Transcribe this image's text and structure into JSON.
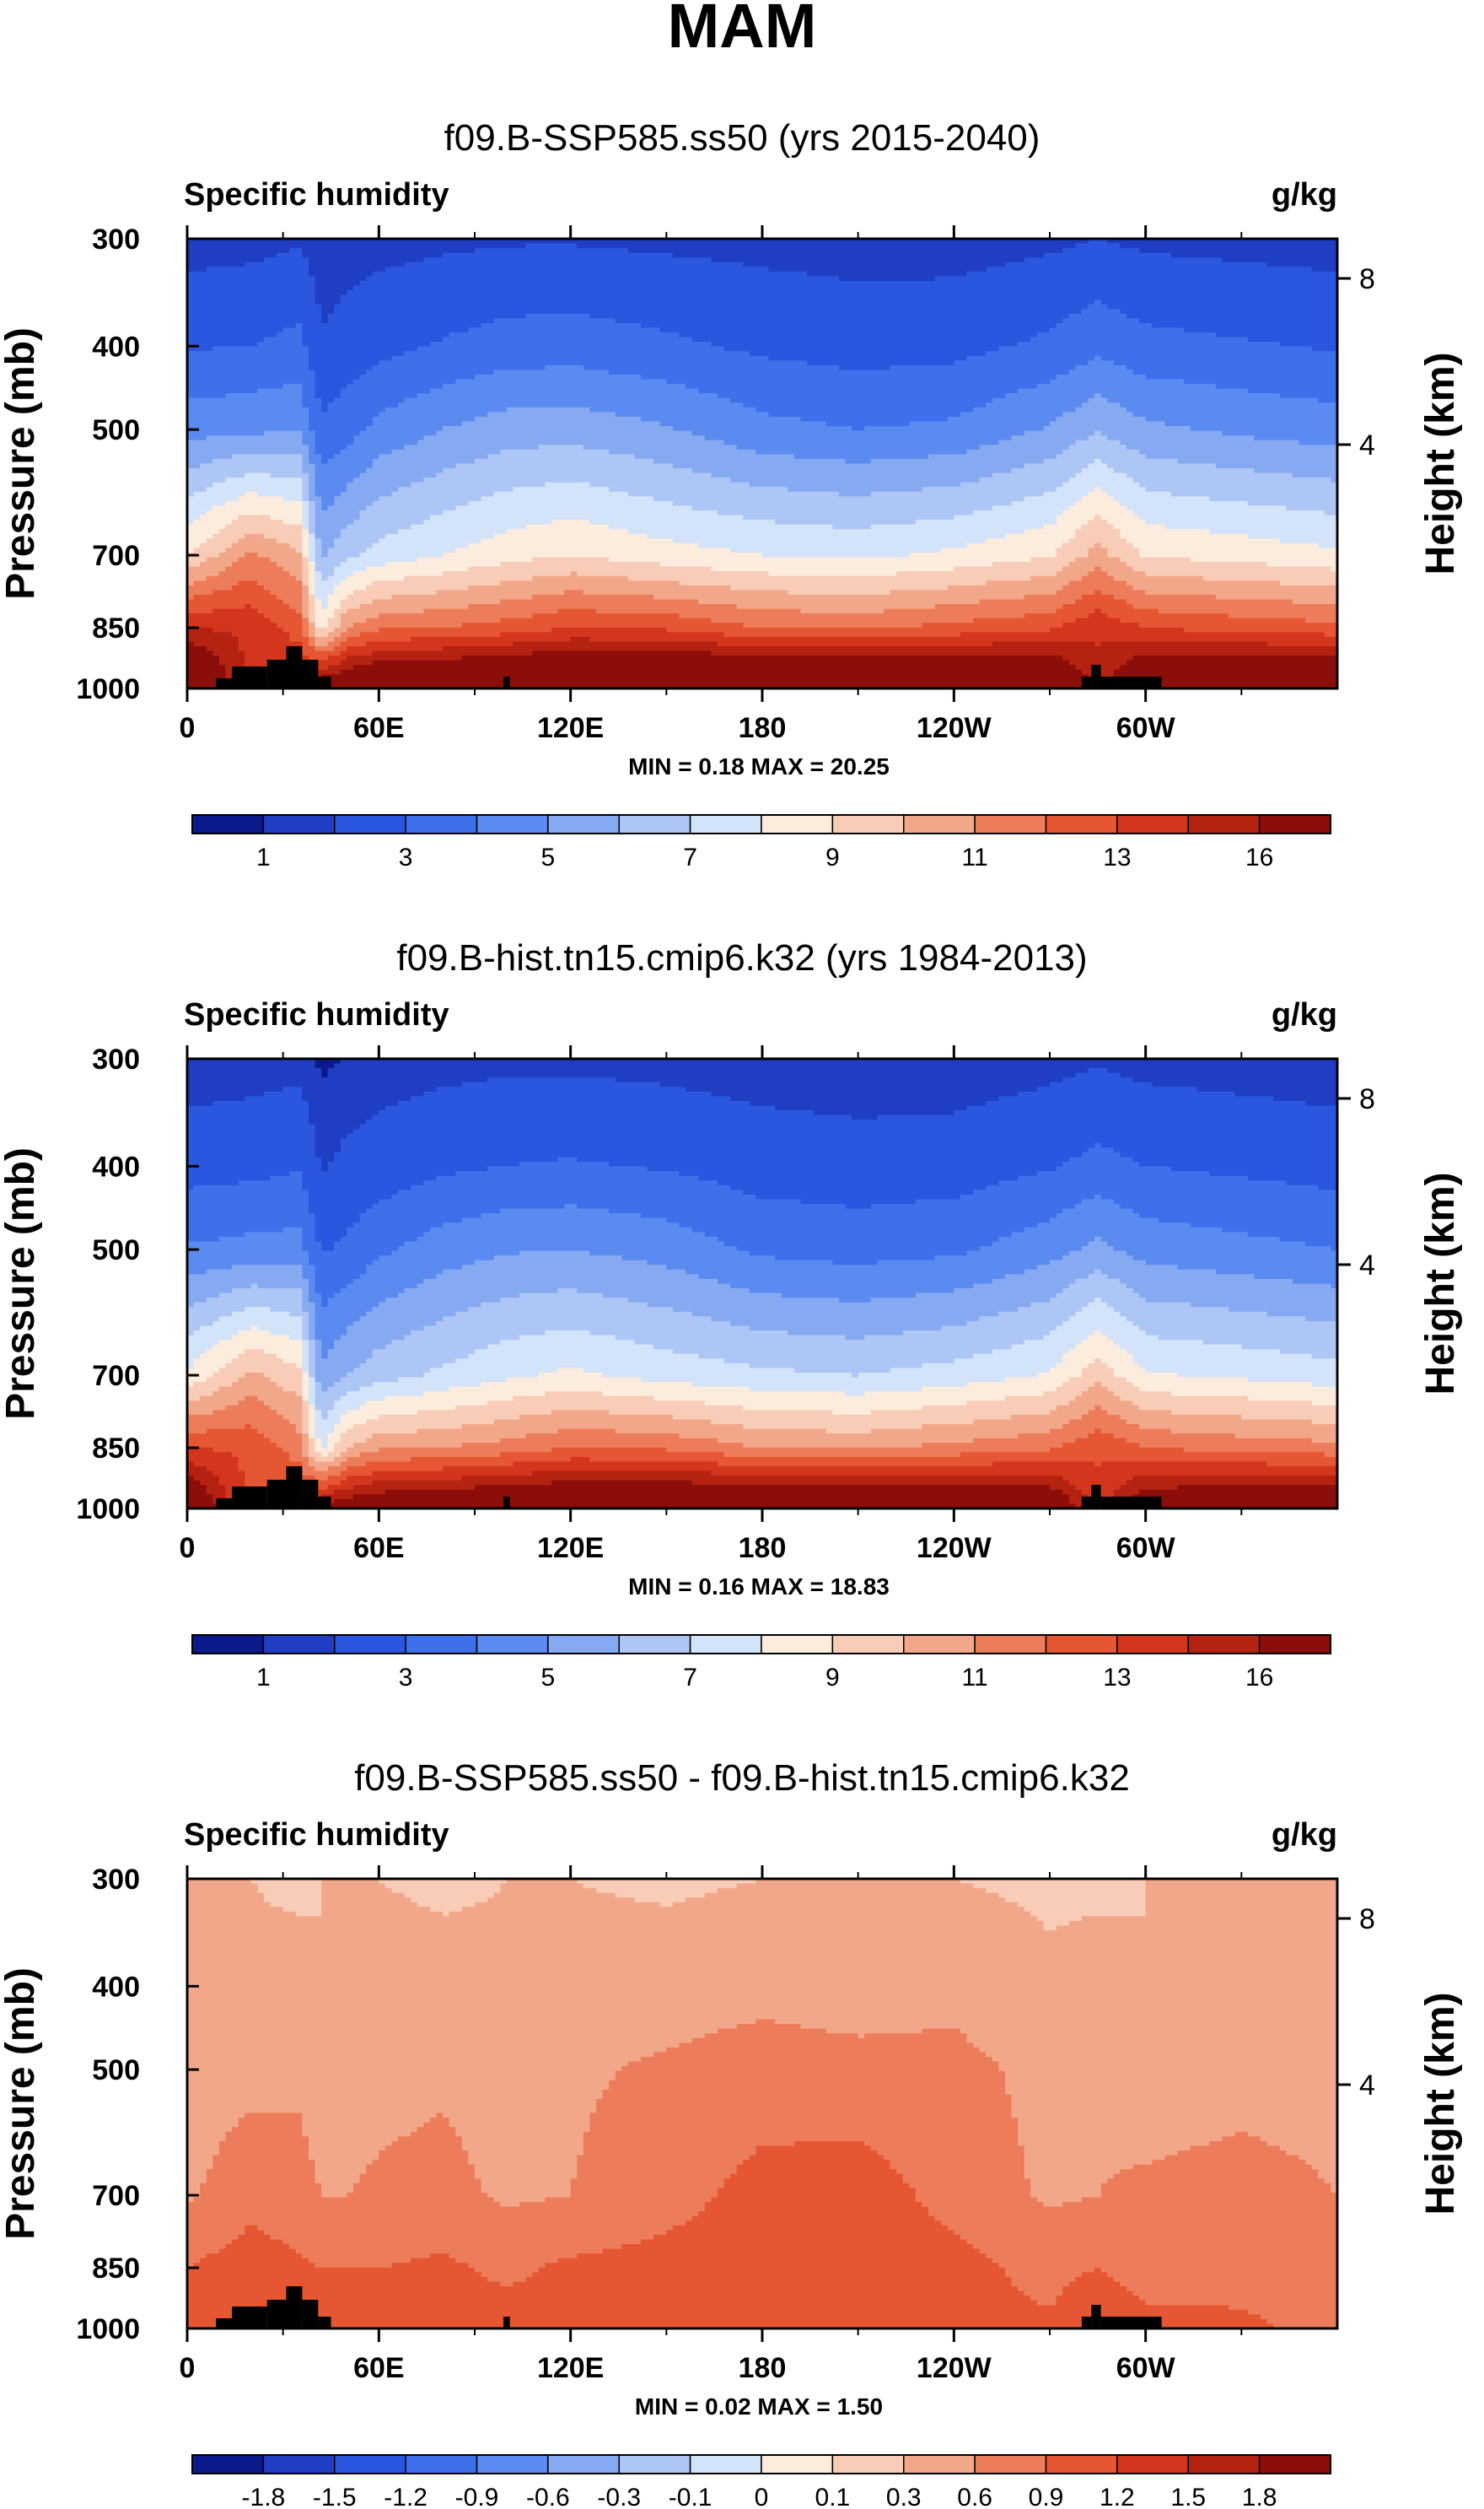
{
  "main_title": "MAM",
  "colors": {
    "absolute_levels": [
      "#0a1a8a",
      "#1f3ec4",
      "#2a56e0",
      "#3e70ec",
      "#5b8af0",
      "#86aaf2",
      "#adc6f6",
      "#d3e3fa",
      "#fcecde",
      "#f8ccb6",
      "#f3a78a",
      "#ed7d5a",
      "#e65632",
      "#d3361c",
      "#b52212",
      "#8c0e0b"
    ],
    "diff_levels": [
      "#0a1a8a",
      "#1f3ec4",
      "#2a56e0",
      "#3e70ec",
      "#5b8af0",
      "#86aaf2",
      "#adc6f6",
      "#d3e3fa",
      "#fcecde",
      "#f8ccb6",
      "#f3a78a",
      "#ed7d5a",
      "#e65632",
      "#d3361c",
      "#b52212",
      "#8c0e0b"
    ],
    "terrain": "#000000"
  },
  "chart_data": [
    {
      "type": "contour",
      "title": "f09.B-SSP585.ss50 (yrs 2015-2040)",
      "variable": "Specific humidity",
      "units": "g/kg",
      "ylabel": "Pressure (mb)",
      "y2label": "Height (km)",
      "y_ticks": [
        "300",
        "400",
        "500",
        "700",
        "850",
        "1000"
      ],
      "y2_ticks": [
        "8",
        "4"
      ],
      "x_ticks": [
        "0",
        "60E",
        "120E",
        "180",
        "120W",
        "60W"
      ],
      "stats": "MIN =   0.18  MAX =  20.25",
      "colorbar_labels": [
        "1",
        "3",
        "5",
        "7",
        "9",
        "11",
        "13",
        "16"
      ],
      "field": {
        "x": [
          0,
          20,
          35,
          42,
          50,
          60,
          80,
          100,
          120,
          150,
          180,
          210,
          240,
          270,
          285,
          300,
          330,
          360
        ],
        "levels": [
          1000,
          850,
          700,
          500,
          400,
          300
        ],
        "values": [
          [
            17.5,
            12.5,
            13.5,
            15.5,
            16.0,
            16.5,
            16.8,
            17.2,
            17.4,
            17.5,
            17.5,
            17.5,
            17.3,
            16.8,
            13.5,
            16.5,
            17.0,
            17.2
          ],
          [
            13.0,
            12.8,
            11.5,
            7.5,
            10.0,
            10.8,
            11.0,
            11.4,
            12.0,
            11.8,
            11.0,
            10.8,
            11.3,
            11.8,
            12.8,
            12.0,
            11.6,
            11.3
          ],
          [
            8.0,
            10.2,
            9.2,
            4.8,
            5.7,
            6.4,
            7.0,
            7.6,
            8.0,
            7.4,
            7.0,
            6.8,
            7.2,
            7.9,
            9.4,
            7.9,
            7.6,
            7.2
          ],
          [
            3.6,
            3.8,
            3.9,
            2.2,
            2.6,
            3.3,
            4.0,
            4.5,
            4.6,
            4.1,
            3.3,
            3.0,
            3.2,
            4.1,
            4.9,
            4.2,
            3.8,
            3.5
          ],
          [
            1.9,
            2.0,
            2.3,
            1.1,
            1.4,
            1.7,
            2.1,
            2.4,
            2.5,
            2.2,
            1.8,
            1.6,
            1.7,
            2.2,
            2.7,
            2.3,
            2.1,
            1.9
          ],
          [
            0.6,
            0.7,
            0.9,
            0.5,
            0.6,
            0.7,
            0.8,
            0.9,
            0.9,
            0.8,
            0.7,
            0.6,
            0.6,
            0.8,
            1.0,
            0.8,
            0.7,
            0.6
          ]
        ]
      }
    },
    {
      "type": "contour",
      "title": "f09.B-hist.tn15.cmip6.k32 (yrs 1984-2013)",
      "variable": "Specific humidity",
      "units": "g/kg",
      "ylabel": "Pressure (mb)",
      "y2label": "Height (km)",
      "y_ticks": [
        "300",
        "400",
        "500",
        "700",
        "850",
        "1000"
      ],
      "y2_ticks": [
        "8",
        "4"
      ],
      "x_ticks": [
        "0",
        "60E",
        "120E",
        "180",
        "120W",
        "60W"
      ],
      "stats": "MIN =   0.16  MAX =  18.83",
      "colorbar_labels": [
        "1",
        "3",
        "5",
        "7",
        "9",
        "11",
        "13",
        "16"
      ],
      "field": {
        "x": [
          0,
          20,
          35,
          42,
          50,
          60,
          80,
          100,
          120,
          150,
          180,
          210,
          240,
          270,
          285,
          300,
          330,
          360
        ],
        "levels": [
          1000,
          850,
          700,
          500,
          400,
          300
        ],
        "values": [
          [
            16.5,
            11.5,
            12.5,
            14.5,
            15.0,
            15.5,
            15.8,
            16.2,
            16.4,
            16.5,
            16.5,
            16.5,
            16.3,
            15.8,
            12.5,
            15.5,
            16.0,
            16.2
          ],
          [
            12.0,
            11.8,
            10.5,
            6.8,
            9.0,
            9.8,
            10.0,
            10.4,
            11.0,
            10.8,
            10.0,
            9.8,
            10.3,
            10.8,
            11.8,
            11.0,
            10.6,
            10.3
          ],
          [
            7.2,
            9.3,
            8.3,
            4.2,
            5.0,
            5.6,
            6.2,
            6.8,
            7.2,
            6.6,
            6.2,
            6.0,
            6.4,
            7.1,
            8.6,
            7.1,
            6.8,
            6.4
          ],
          [
            3.1,
            3.3,
            3.4,
            1.9,
            2.2,
            2.8,
            3.5,
            3.9,
            4.0,
            3.6,
            2.8,
            2.6,
            2.8,
            3.6,
            4.3,
            3.6,
            3.3,
            3.0
          ],
          [
            1.6,
            1.7,
            1.9,
            0.9,
            1.2,
            1.4,
            1.8,
            2.0,
            2.1,
            1.9,
            1.5,
            1.4,
            1.5,
            1.9,
            2.3,
            2.0,
            1.8,
            1.6
          ],
          [
            0.5,
            0.6,
            0.7,
            0.4,
            0.5,
            0.6,
            0.7,
            0.8,
            0.8,
            0.7,
            0.6,
            0.5,
            0.5,
            0.7,
            0.9,
            0.7,
            0.6,
            0.5
          ]
        ]
      }
    },
    {
      "type": "contour",
      "title": "f09.B-SSP585.ss50 - f09.B-hist.tn15.cmip6.k32",
      "variable": "Specific humidity",
      "units": "g/kg",
      "ylabel": "Pressure (mb)",
      "y2label": "Height (km)",
      "y_ticks": [
        "300",
        "400",
        "500",
        "700",
        "850",
        "1000"
      ],
      "y2_ticks": [
        "8",
        "4"
      ],
      "x_ticks": [
        "0",
        "60E",
        "120E",
        "180",
        "120W",
        "60W"
      ],
      "stats": "MIN =   0.02  MAX =   1.50",
      "colorbar_labels": [
        "-1.8",
        "-1.5",
        "-1.2",
        "-0.9",
        "-0.6",
        "-0.3",
        "-0.1",
        "0",
        "0.1",
        "0.3",
        "0.6",
        "0.9",
        "1.2",
        "1.5",
        "1.8"
      ],
      "field": {
        "x": [
          0,
          20,
          35,
          42,
          50,
          60,
          80,
          100,
          120,
          150,
          180,
          210,
          240,
          270,
          285,
          300,
          330,
          360
        ],
        "levels": [
          1000,
          850,
          700,
          500,
          400,
          300
        ],
        "values": [
          [
            1.0,
            0.95,
            1.15,
            1.0,
            1.0,
            1.0,
            1.0,
            1.0,
            1.0,
            1.0,
            1.0,
            1.0,
            1.0,
            0.95,
            1.2,
            1.0,
            0.95,
            0.8
          ],
          [
            0.9,
            1.05,
            0.95,
            0.9,
            0.9,
            0.9,
            0.95,
            0.85,
            0.95,
            1.0,
            1.0,
            1.05,
            1.0,
            0.8,
            0.9,
            0.75,
            0.8,
            0.8
          ],
          [
            0.55,
            0.8,
            0.7,
            0.6,
            0.6,
            0.65,
            0.7,
            0.55,
            0.6,
            0.8,
            1.0,
            1.05,
            0.8,
            0.55,
            0.6,
            0.65,
            0.7,
            0.6
          ],
          [
            0.45,
            0.5,
            0.55,
            0.45,
            0.45,
            0.5,
            0.55,
            0.45,
            0.55,
            0.65,
            0.75,
            0.7,
            0.7,
            0.5,
            0.55,
            0.45,
            0.5,
            0.5
          ],
          [
            0.35,
            0.35,
            0.4,
            0.3,
            0.35,
            0.4,
            0.4,
            0.35,
            0.4,
            0.45,
            0.5,
            0.45,
            0.5,
            0.35,
            0.4,
            0.3,
            0.35,
            0.35
          ],
          [
            0.3,
            0.3,
            0.25,
            0.3,
            0.3,
            0.3,
            0.25,
            0.3,
            0.3,
            0.25,
            0.3,
            0.3,
            0.3,
            0.25,
            0.25,
            0.3,
            0.3,
            0.3
          ]
        ]
      }
    }
  ]
}
